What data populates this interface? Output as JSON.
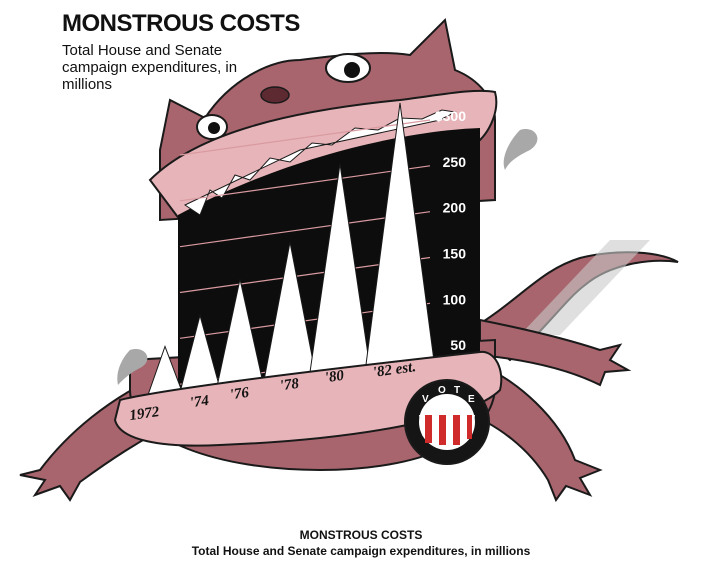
{
  "header": {
    "title": "MONSTROUS COSTS",
    "subtitle": "Total House and Senate campaign expenditures, in millions"
  },
  "caption": {
    "title": "MONSTROUS COSTS",
    "subtitle": "Total House and Senate campaign expenditures, in millions"
  },
  "badge": {
    "letters": [
      "V",
      "O",
      "T",
      "E"
    ]
  },
  "colors": {
    "monster_body": "#a8656d",
    "monster_outline": "#1a1a1a",
    "gums": "#e7b5b9",
    "mouth": "#0d0d0d",
    "teeth": "#ffffff",
    "badge_red": "#d02b2b"
  },
  "chart_data": {
    "type": "bar",
    "title": "MONSTROUS COSTS",
    "subtitle": "Total House and Senate campaign expenditures, in millions",
    "categories": [
      "1972",
      "'74",
      "'76",
      "'78",
      "'80",
      "'82 est."
    ],
    "values": [
      60,
      90,
      125,
      160,
      240,
      300
    ],
    "yticks": [
      {
        "value": 50,
        "label": "50"
      },
      {
        "value": 100,
        "label": "100"
      },
      {
        "value": 150,
        "label": "150"
      },
      {
        "value": 200,
        "label": "200"
      },
      {
        "value": 250,
        "label": "250"
      },
      {
        "value": 300,
        "label": "$300"
      }
    ],
    "ylim": [
      0,
      300
    ],
    "xlabel": "",
    "ylabel": "",
    "grid": true,
    "legend": "none"
  }
}
